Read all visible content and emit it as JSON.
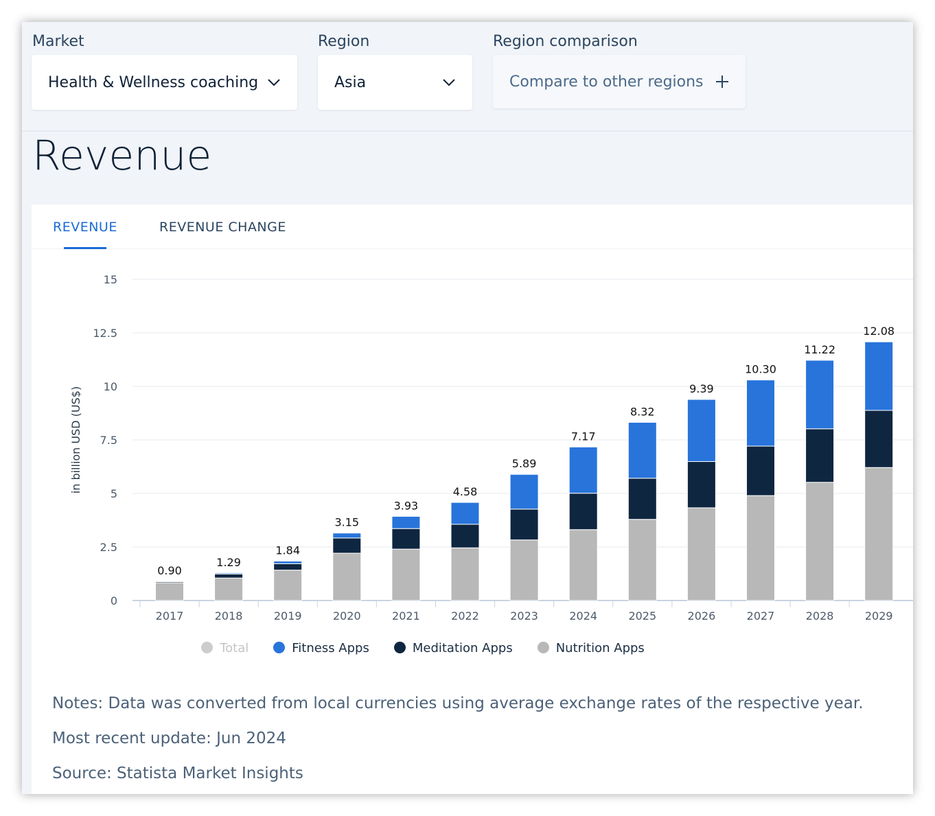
{
  "filters": {
    "market_label": "Market",
    "market_value": "Health & Wellness coaching",
    "region_label": "Region",
    "region_value": "Asia",
    "comparison_label": "Region comparison",
    "comparison_value": "Compare to other regions"
  },
  "page_title": "Revenue",
  "tabs": [
    {
      "label": "REVENUE",
      "active": true
    },
    {
      "label": "REVENUE CHANGE",
      "active": false
    }
  ],
  "chart_data": {
    "type": "bar",
    "stacked": true,
    "ylabel": "in billion USD (US$)",
    "ylim": [
      0,
      15
    ],
    "yticks": [
      "0",
      "2.5",
      "5",
      "7.5",
      "10",
      "12.5",
      "15"
    ],
    "grid": true,
    "legend": "bottom",
    "categories": [
      "2017",
      "2018",
      "2019",
      "2020",
      "2021",
      "2022",
      "2023",
      "2024",
      "2025",
      "2026",
      "2027",
      "2028",
      "2029"
    ],
    "totals": [
      "0.90",
      "1.29",
      "1.84",
      "3.15",
      "3.93",
      "4.58",
      "5.89",
      "7.17",
      "8.32",
      "9.39",
      "10.30",
      "11.22",
      "12.08"
    ],
    "series": [
      {
        "name": "Nutrition Apps",
        "color": "#b8b8b8",
        "values": [
          0.83,
          1.05,
          1.42,
          2.21,
          2.4,
          2.46,
          2.83,
          3.31,
          3.79,
          4.33,
          4.9,
          5.52,
          6.21
        ]
      },
      {
        "name": "Meditation Apps",
        "color": "#0f2640",
        "values": [
          0.05,
          0.19,
          0.3,
          0.71,
          0.96,
          1.1,
          1.44,
          1.7,
          1.92,
          2.16,
          2.31,
          2.5,
          2.67
        ]
      },
      {
        "name": "Fitness Apps",
        "color": "#2874db",
        "values": [
          0.02,
          0.05,
          0.12,
          0.23,
          0.57,
          1.02,
          1.62,
          2.16,
          2.61,
          2.9,
          3.09,
          3.2,
          3.2
        ]
      }
    ],
    "legend_items": [
      {
        "name": "Total",
        "color": "#cccccc",
        "disabled": true
      },
      {
        "name": "Fitness Apps",
        "color": "#2874db"
      },
      {
        "name": "Meditation Apps",
        "color": "#0f2640"
      },
      {
        "name": "Nutrition Apps",
        "color": "#b8b8b8"
      }
    ]
  },
  "notes": {
    "note": "Notes: Data was converted from local currencies using average exchange rates of the respective year.",
    "update": "Most recent update: Jun 2024",
    "source": "Source: Statista Market Insights"
  }
}
